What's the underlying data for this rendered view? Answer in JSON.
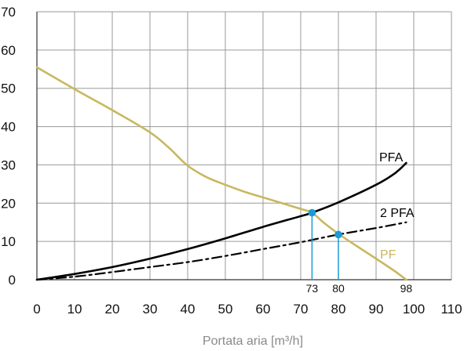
{
  "chart_data": {
    "type": "line",
    "xlabel": "Portata aria [m³/h]",
    "xlim": [
      0,
      110
    ],
    "ylim": [
      0,
      70
    ],
    "x_ticks": [
      0,
      10,
      20,
      30,
      40,
      50,
      60,
      70,
      80,
      90,
      100,
      110
    ],
    "y_ticks": [
      0,
      10,
      20,
      30,
      40,
      50,
      60,
      70
    ],
    "grid": true,
    "series": [
      {
        "name": "PF",
        "style": "solid",
        "color": "#c8b85e",
        "points": [
          [
            0,
            55.5
          ],
          [
            10,
            49.8
          ],
          [
            20,
            44.3
          ],
          [
            30,
            38.5
          ],
          [
            35,
            34.5
          ],
          [
            40,
            29.8
          ],
          [
            45,
            26.8
          ],
          [
            50,
            24.8
          ],
          [
            55,
            23.0
          ],
          [
            60,
            21.5
          ],
          [
            65,
            20.0
          ],
          [
            70,
            18.5
          ],
          [
            73,
            17.5
          ],
          [
            76,
            15.0
          ],
          [
            80,
            12.0
          ],
          [
            85,
            8.7
          ],
          [
            90,
            5.5
          ],
          [
            95,
            2.2
          ],
          [
            98,
            0
          ]
        ]
      },
      {
        "name": "PFA",
        "style": "solid",
        "color": "#000000",
        "points": [
          [
            0,
            0
          ],
          [
            10,
            1.5
          ],
          [
            20,
            3.3
          ],
          [
            30,
            5.5
          ],
          [
            40,
            8.0
          ],
          [
            50,
            10.8
          ],
          [
            60,
            13.8
          ],
          [
            70,
            16.6
          ],
          [
            73,
            17.5
          ],
          [
            80,
            20.2
          ],
          [
            90,
            24.8
          ],
          [
            95,
            27.8
          ],
          [
            98,
            30.5
          ]
        ]
      },
      {
        "name": "2 PFA",
        "style": "dash-dot",
        "color": "#000000",
        "points": [
          [
            0,
            0
          ],
          [
            10,
            0.8
          ],
          [
            20,
            2.0
          ],
          [
            30,
            3.3
          ],
          [
            40,
            4.6
          ],
          [
            50,
            6.2
          ],
          [
            60,
            8.0
          ],
          [
            70,
            9.8
          ],
          [
            80,
            11.8
          ],
          [
            90,
            13.5
          ],
          [
            98,
            15.0
          ]
        ]
      }
    ],
    "operating_points": [
      {
        "x": 73,
        "y": 17.5,
        "label": "73"
      },
      {
        "x": 80,
        "y": 11.8,
        "label": "80"
      }
    ],
    "annotations": [
      {
        "x": 98,
        "y": 0,
        "text": "98"
      }
    ],
    "colors": {
      "grid": "#9a9a9a",
      "axis": "#333333",
      "marker": "#1a9bd7"
    }
  }
}
